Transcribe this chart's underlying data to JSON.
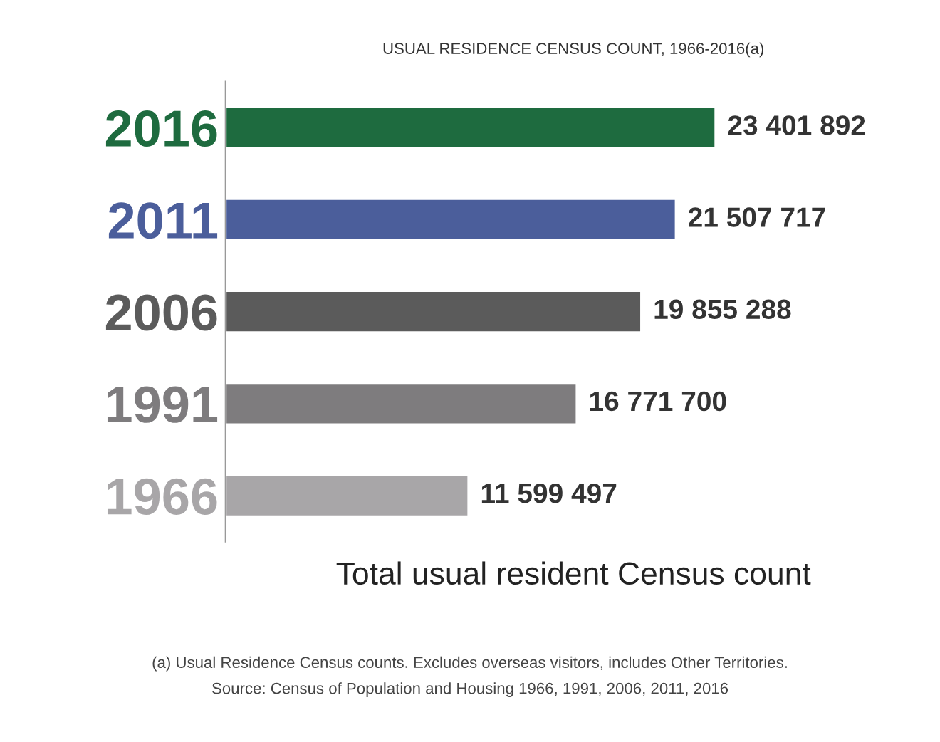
{
  "chart_data": {
    "type": "bar",
    "orientation": "horizontal",
    "title": "USUAL RESIDENCE CENSUS COUNT, 1966-2016(a)",
    "categories": [
      "2016",
      "2011",
      "2006",
      "1991",
      "1966"
    ],
    "values": [
      23401892,
      21507717,
      19855288,
      16771700,
      11599497
    ],
    "colors": [
      "#1e6b3f",
      "#4b5e9b",
      "#5b5b5b",
      "#7e7c7e",
      "#a8a6a8"
    ],
    "data_labels": true,
    "value_labels": [
      "23 401 892",
      "21 507 717",
      "19 855 288",
      "16 771 700",
      "11 599 497"
    ],
    "xlabel": "Total usual resident Census count",
    "annotations": [
      "(a) Usual Residence Census counts. Excludes overseas visitors, includes Other Territories.",
      "Source: Census of Population and Housing 1966, 1991, 2006, 2011, 2016"
    ],
    "tick_labels": "y",
    "legend": false,
    "grid": false
  }
}
